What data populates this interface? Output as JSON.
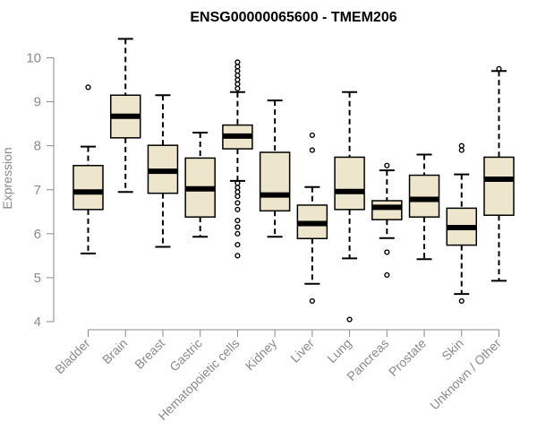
{
  "chart_data": {
    "type": "boxplot",
    "title": "ENSG00000065600 - TMEM206",
    "xlabel": "",
    "ylabel": "Expression",
    "ylim": [
      4,
      10
    ],
    "yticks": [
      4,
      5,
      6,
      7,
      8,
      9,
      10
    ],
    "grid": false,
    "legend": "none",
    "colors": {
      "box_fill": "#ede5cc",
      "stroke": "#000000",
      "axis": "#8a8a8a"
    },
    "categories": [
      "Bladder",
      "Brain",
      "Breast",
      "Gastric",
      "Hematopoietic cells",
      "Kidney",
      "Liver",
      "Lung",
      "Pancreas",
      "Prostate",
      "Skin",
      "Unknown / Other"
    ],
    "boxes": [
      {
        "category": "Bladder",
        "whisker_low": 5.55,
        "q1": 6.55,
        "median": 6.95,
        "q3": 7.55,
        "whisker_high": 7.98,
        "outliers": [
          9.33
        ]
      },
      {
        "category": "Brain",
        "whisker_low": 6.95,
        "q1": 8.18,
        "median": 8.67,
        "q3": 9.15,
        "whisker_high": 10.43,
        "outliers": []
      },
      {
        "category": "Breast",
        "whisker_low": 5.7,
        "q1": 6.92,
        "median": 7.42,
        "q3": 8.01,
        "whisker_high": 9.15,
        "outliers": []
      },
      {
        "category": "Gastric",
        "whisker_low": 5.93,
        "q1": 6.38,
        "median": 7.02,
        "q3": 7.72,
        "whisker_high": 8.3,
        "outliers": []
      },
      {
        "category": "Hematopoietic cells",
        "whisker_low": 7.2,
        "q1": 7.93,
        "median": 8.22,
        "q3": 8.47,
        "whisker_high": 9.22,
        "outliers": [
          9.3,
          9.4,
          9.5,
          9.6,
          9.7,
          9.8,
          9.9,
          7.15,
          7.05,
          6.95,
          6.85,
          6.7,
          6.55,
          6.3,
          6.15,
          6.0,
          5.75,
          5.5
        ]
      },
      {
        "category": "Kidney",
        "whisker_low": 5.93,
        "q1": 6.52,
        "median": 6.88,
        "q3": 7.85,
        "whisker_high": 9.03,
        "outliers": []
      },
      {
        "category": "Liver",
        "whisker_low": 4.86,
        "q1": 5.89,
        "median": 6.23,
        "q3": 6.65,
        "whisker_high": 7.06,
        "outliers": [
          8.24,
          7.9,
          4.47
        ]
      },
      {
        "category": "Lung",
        "whisker_low": 5.44,
        "q1": 6.55,
        "median": 6.96,
        "q3": 7.74,
        "whisker_high": 9.22,
        "outliers": [
          4.05
        ]
      },
      {
        "category": "Pancreas",
        "whisker_low": 5.9,
        "q1": 6.32,
        "median": 6.6,
        "q3": 6.75,
        "whisker_high": 7.44,
        "outliers": [
          7.55,
          5.58,
          5.06
        ]
      },
      {
        "category": "Prostate",
        "whisker_low": 5.42,
        "q1": 6.38,
        "median": 6.78,
        "q3": 7.33,
        "whisker_high": 7.8,
        "outliers": []
      },
      {
        "category": "Skin",
        "whisker_low": 4.63,
        "q1": 5.74,
        "median": 6.14,
        "q3": 6.58,
        "whisker_high": 7.35,
        "outliers": [
          8.0,
          7.9,
          4.47
        ]
      },
      {
        "category": "Unknown / Other",
        "whisker_low": 4.93,
        "q1": 6.42,
        "median": 7.24,
        "q3": 7.74,
        "whisker_high": 9.7,
        "outliers": [
          9.75
        ]
      }
    ]
  }
}
